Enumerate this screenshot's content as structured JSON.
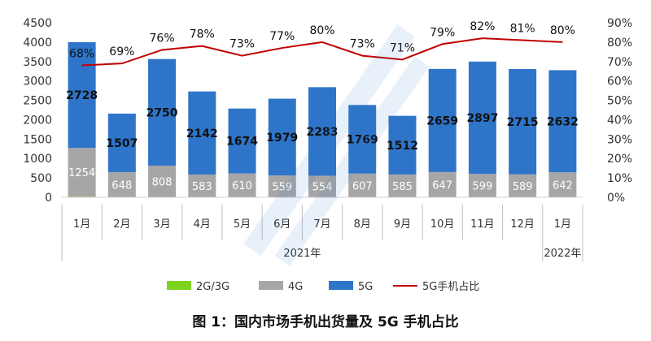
{
  "chart_data": {
    "type": "bar",
    "title": "",
    "caption": "图 1：国内市场手机出货量及 5G 手机占比",
    "categories": [
      "1月",
      "2月",
      "3月",
      "4月",
      "5月",
      "6月",
      "7月",
      "8月",
      "9月",
      "10月",
      "11月",
      "12月",
      "1月"
    ],
    "year_labels": [
      "2021年",
      "2022年"
    ],
    "series": [
      {
        "name": "2G/3G",
        "values": [
          18,
          2,
          7,
          4,
          4,
          4,
          2,
          4,
          3,
          4,
          3,
          2,
          3
        ],
        "color": "#7ed321"
      },
      {
        "name": "4G",
        "values": [
          1254,
          648,
          808,
          583,
          610,
          559,
          554,
          607,
          585,
          647,
          599,
          589,
          642
        ],
        "color": "#a6a6a6"
      },
      {
        "name": "5G",
        "values": [
          2728,
          1507,
          2750,
          2142,
          1674,
          1979,
          2283,
          1769,
          1512,
          2659,
          2897,
          2715,
          2632
        ],
        "color": "#2e75c9"
      },
      {
        "name": "5G手机占比",
        "values": [
          68,
          69,
          76,
          78,
          73,
          77,
          80,
          73,
          71,
          79,
          82,
          81,
          80
        ],
        "color": "#c00000",
        "axis": "right",
        "type": "line"
      }
    ],
    "pct_labels": [
      "68%",
      "69%",
      "76%",
      "78%",
      "73%",
      "77%",
      "80%",
      "73%",
      "71%",
      "79%",
      "82%",
      "81%",
      "80%"
    ],
    "ylim_left": [
      0,
      4500
    ],
    "yticks_left": [
      "0",
      "500",
      "1000",
      "1500",
      "2000",
      "2500",
      "3000",
      "3500",
      "4000",
      "4500"
    ],
    "ylim_right": [
      0,
      90
    ],
    "yticks_right": [
      "0%",
      "10%",
      "20%",
      "30%",
      "40%",
      "50%",
      "60%",
      "70%",
      "80%",
      "90%"
    ],
    "xlabel": "",
    "ylabel": "",
    "legend_position": "bottom",
    "grid": false
  },
  "colors": {
    "bar_5g": "#2e75c9",
    "bar_4g": "#a6a6a6",
    "bar_2g3g": "#7ed321",
    "line": "#c00000"
  }
}
